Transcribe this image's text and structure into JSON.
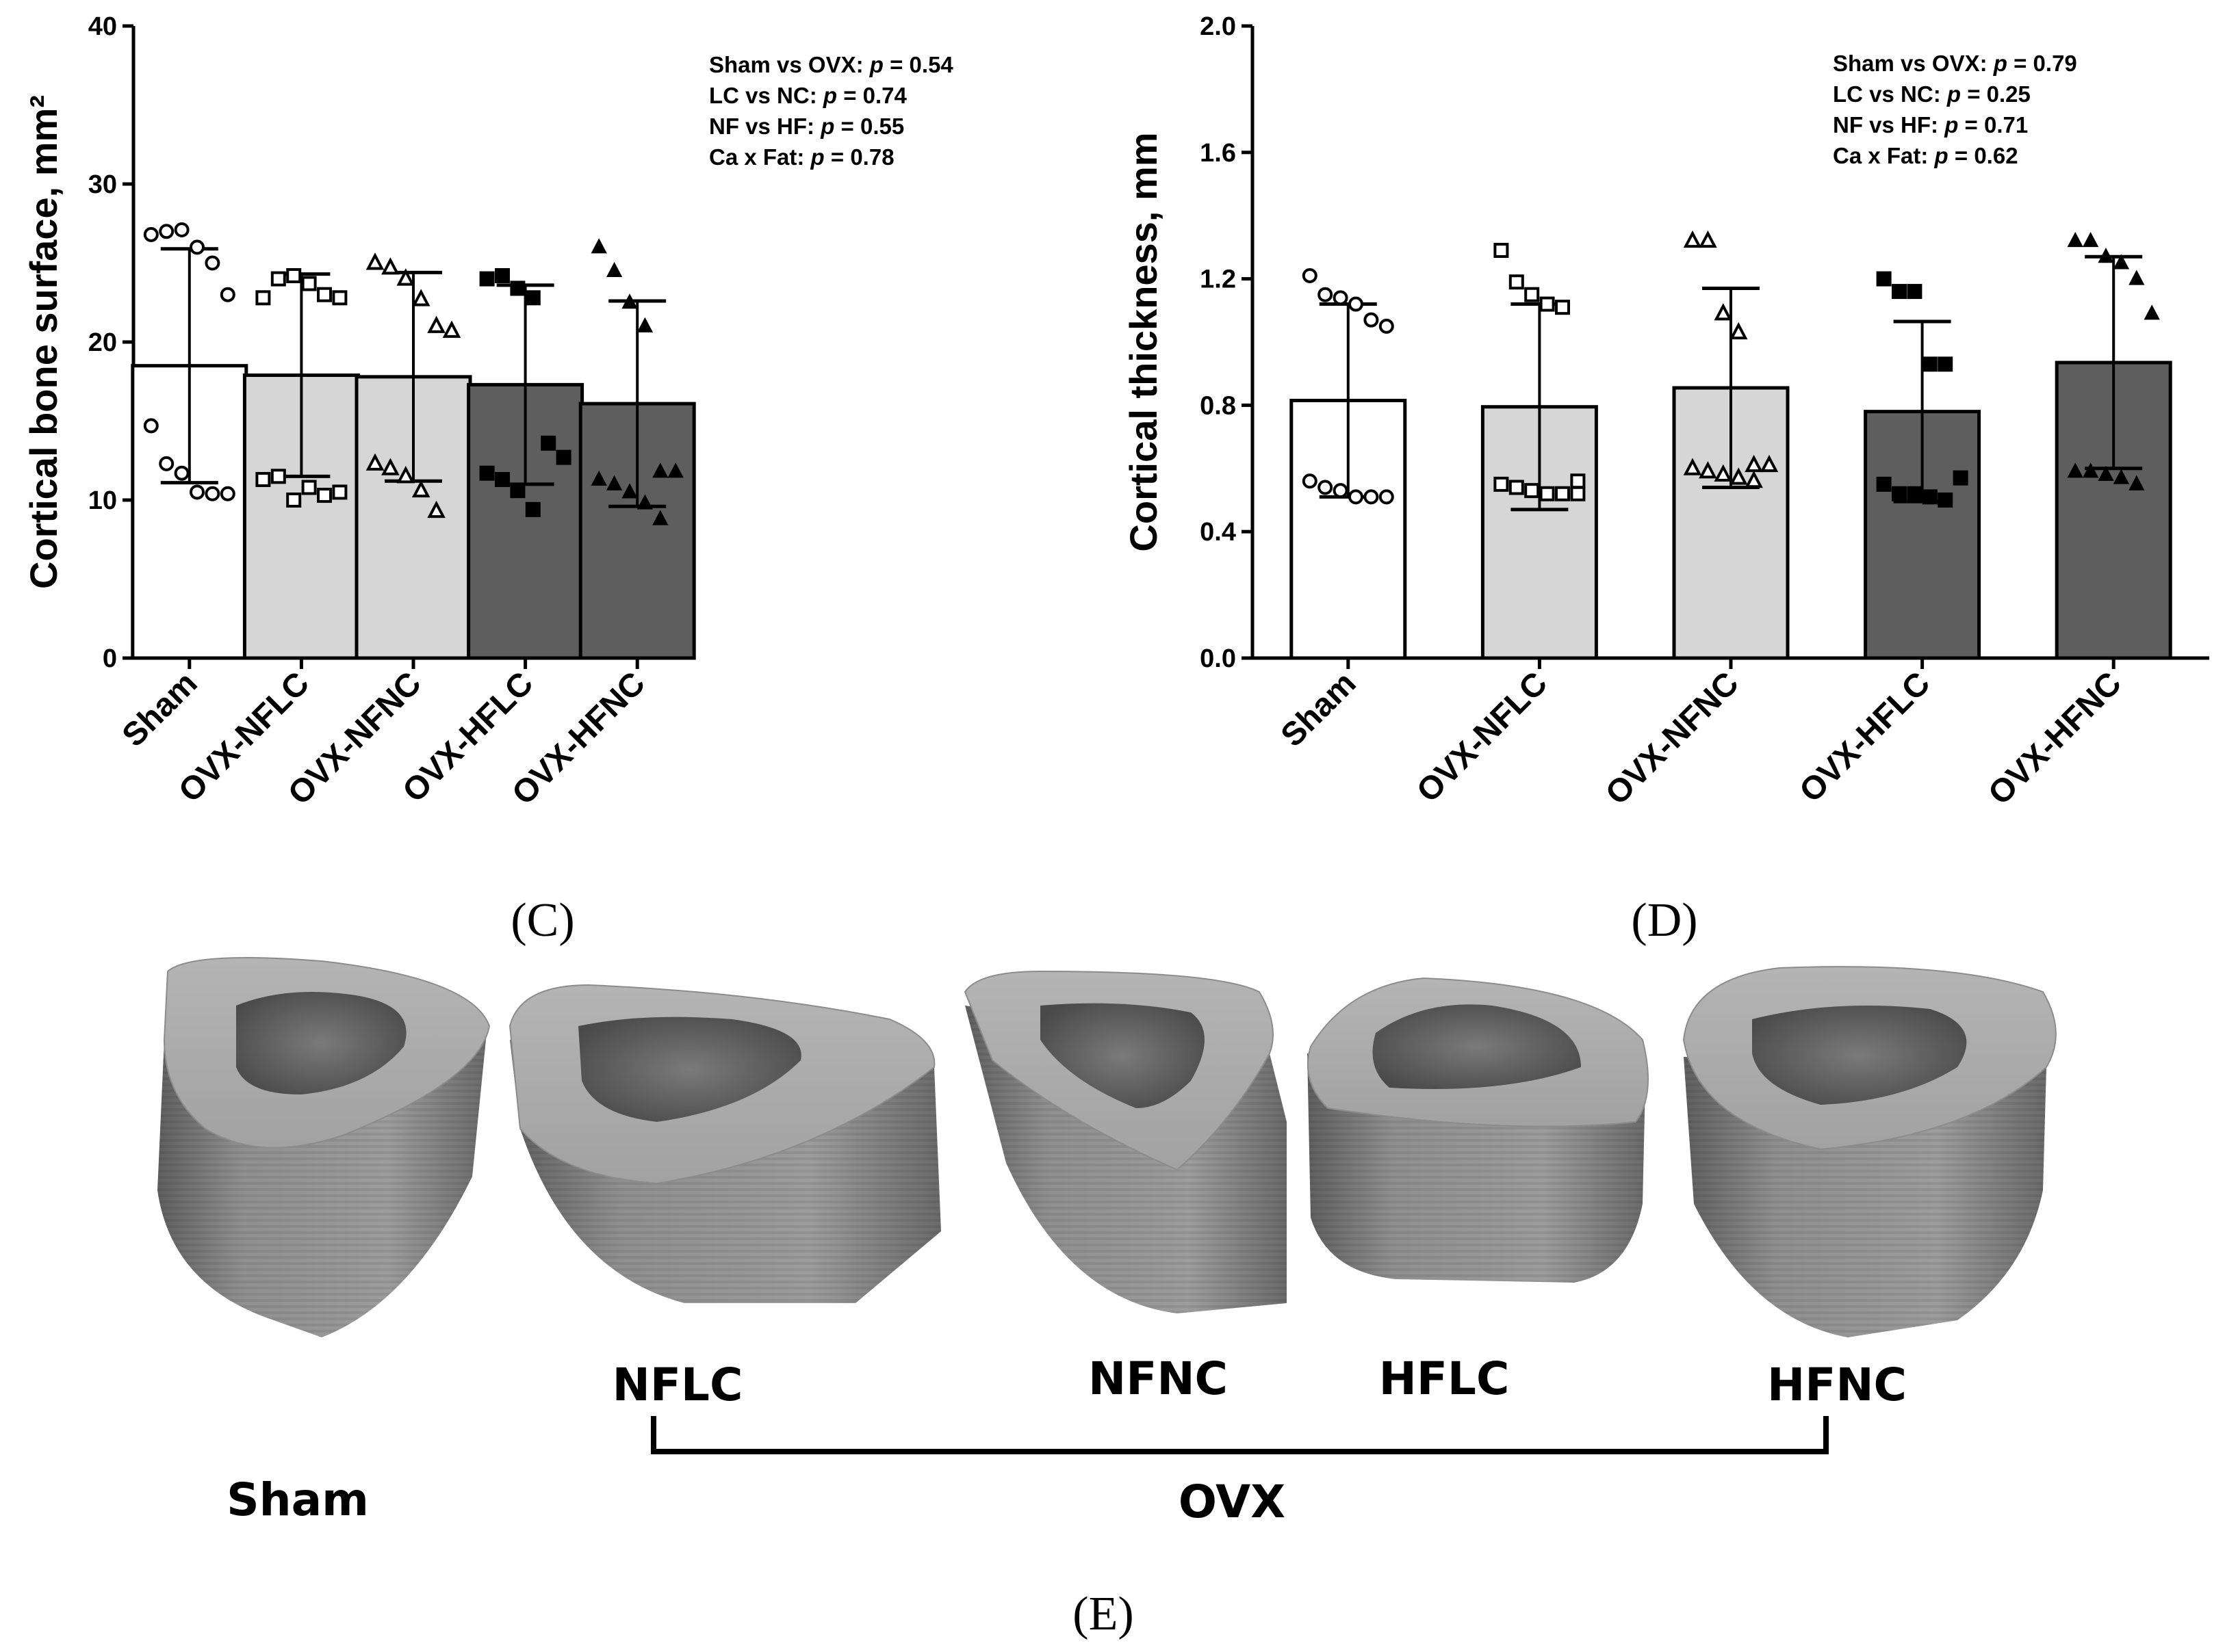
{
  "chart_data": [
    {
      "type": "bar",
      "panel": "(C)",
      "title": "",
      "xlabel": "",
      "ylabel": "Cortical bone surface, mm²",
      "ylim": [
        0,
        40
      ],
      "yticks": [
        "0",
        "10",
        "20",
        "30",
        "40"
      ],
      "categories": [
        "Sham",
        "OVX-NFLC",
        "OVX-NFNC",
        "OVX-HFLC",
        "OVX-HFNC"
      ],
      "values": [
        18.5,
        17.9,
        17.8,
        17.3,
        16.1
      ],
      "errors": [
        7.4,
        6.4,
        6.6,
        6.3,
        6.5
      ],
      "bar_colors": [
        "#ffffff",
        "#d6d6d6",
        "#d6d6d6",
        "#5e5e5e",
        "#5e5e5e"
      ],
      "markers": [
        "circle-open",
        "square-open",
        "triangle-open",
        "square-filled",
        "triangle-filled"
      ],
      "points": [
        [
          26.8,
          27.0,
          27.1,
          26.0,
          25.0,
          23.0,
          14.7,
          12.3,
          11.7,
          10.5,
          10.4,
          10.4
        ],
        [
          22.8,
          24.0,
          24.2,
          23.7,
          23.0,
          22.8,
          11.3,
          11.5,
          10.0,
          10.8,
          10.3,
          10.5
        ],
        [
          25.0,
          24.7,
          24.0,
          22.7,
          21.0,
          20.7,
          12.3,
          12.0,
          11.5,
          10.6,
          9.3
        ],
        [
          24.0,
          24.2,
          23.4,
          22.8,
          13.6,
          12.7,
          11.7,
          11.3,
          10.6,
          9.4
        ],
        [
          26.0,
          24.5,
          22.5,
          21.0,
          11.8,
          11.8,
          11.3,
          11.0,
          10.5,
          9.8,
          8.8
        ]
      ],
      "stats": [
        {
          "label": "Sham vs OVX: ",
          "p": "p",
          "value": " = 0.54"
        },
        {
          "label": "LC vs NC: ",
          "p": "p",
          "value": " = 0.74"
        },
        {
          "label": "NF vs HF: ",
          "p": "p",
          "value": " = 0.55"
        },
        {
          "label": "Ca x Fat: ",
          "p": "p",
          "value": " = 0.78"
        }
      ]
    },
    {
      "type": "bar",
      "panel": "(D)",
      "title": "",
      "xlabel": "",
      "ylabel": "Cortical thickness, mm",
      "ylim": [
        0,
        2.0
      ],
      "yticks": [
        "0.0",
        "0.4",
        "0.8",
        "1.2",
        "1.6",
        "2.0"
      ],
      "categories": [
        "Sham",
        "OVX-NFLC",
        "OVX-NFNC",
        "OVX-HFLC",
        "OVX-HFNC"
      ],
      "values": [
        0.815,
        0.795,
        0.855,
        0.78,
        0.935
      ],
      "errors": [
        0.305,
        0.325,
        0.315,
        0.285,
        0.335
      ],
      "bar_colors": [
        "#ffffff",
        "#d6d6d6",
        "#d6d6d6",
        "#5e5e5e",
        "#5e5e5e"
      ],
      "markers": [
        "circle-open",
        "square-open",
        "triangle-open",
        "square-filled",
        "triangle-filled"
      ],
      "points": [
        [
          1.21,
          1.15,
          1.14,
          1.12,
          1.07,
          1.05,
          0.56,
          0.54,
          0.53,
          0.51,
          0.51,
          0.51
        ],
        [
          1.29,
          1.19,
          1.15,
          1.12,
          1.11,
          0.56,
          0.55,
          0.54,
          0.53,
          0.52,
          0.52,
          0.52
        ],
        [
          1.32,
          1.32,
          1.09,
          1.03,
          0.61,
          0.61,
          0.6,
          0.59,
          0.58,
          0.57,
          0.56
        ],
        [
          1.2,
          1.16,
          1.16,
          0.93,
          0.93,
          0.57,
          0.55,
          0.52,
          0.52,
          0.51,
          0.5
        ],
        [
          1.32,
          1.32,
          1.27,
          1.25,
          1.2,
          1.09,
          0.59,
          0.59,
          0.58,
          0.57,
          0.55
        ]
      ],
      "stats": [
        {
          "label": "Sham vs OVX: ",
          "p": "p",
          "value": " = 0.79"
        },
        {
          "label": "LC vs NC: ",
          "p": "p",
          "value": " = 0.25"
        },
        {
          "label": "NF vs HF: ",
          "p": "p",
          "value": " = 0.71"
        },
        {
          "label": "Ca x Fat: ",
          "p": "p",
          "value": " = 0.62"
        }
      ]
    }
  ],
  "images": {
    "panel": "(E)",
    "labels": [
      "Sham",
      "NFLC",
      "NFNC",
      "HFLC",
      "HFNC"
    ],
    "group_label": "OVX"
  },
  "colors": {
    "bone_top": "#a9a9a9",
    "bone_side": "#8a8a8a",
    "bone_cavity": "#5a5a5a"
  }
}
